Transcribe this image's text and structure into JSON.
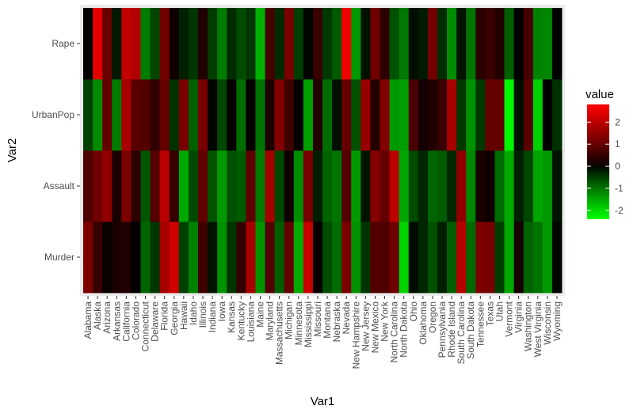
{
  "chart_data": {
    "type": "heatmap",
    "xlabel": "Var1",
    "ylabel": "Var2",
    "x_categories": [
      "Alabama",
      "Alaska",
      "Arizona",
      "Arkansas",
      "California",
      "Colorado",
      "Connecticut",
      "Delaware",
      "Florida",
      "Georgia",
      "Hawaii",
      "Idaho",
      "Illinois",
      "Indiana",
      "Iowa",
      "Kansas",
      "Kentucky",
      "Louisiana",
      "Maine",
      "Maryland",
      "Massachusetts",
      "Michigan",
      "Minnesota",
      "Mississippi",
      "Missouri",
      "Montana",
      "Nebraska",
      "Nevada",
      "New Hampshire",
      "New Jersey",
      "New Mexico",
      "New York",
      "North Carolina",
      "North Dakota",
      "Ohio",
      "Oklahoma",
      "Oregon",
      "Pennsylvania",
      "Rhode Island",
      "South Carolina",
      "South Dakota",
      "Tennessee",
      "Texas",
      "Utah",
      "Vermont",
      "Virginia",
      "Washington",
      "West Virginia",
      "Wisconsin",
      "Wyoming"
    ],
    "y_categories": [
      "Murder",
      "Assault",
      "UrbanPop",
      "Rape"
    ],
    "values": {
      "Murder": [
        1.24,
        0.51,
        0.07,
        0.23,
        0.28,
        0.03,
        -0.85,
        -0.43,
        1.75,
        2.21,
        -0.52,
        -1.13,
        0.59,
        -0.13,
        -1.28,
        -0.41,
        0.46,
        1.74,
        -1.3,
        0.81,
        -0.78,
        0.99,
        -1.54,
        2.16,
        0.07,
        -0.63,
        -0.91,
        1.23,
        -1.28,
        -0.41,
        0.82,
        0.76,
        1.11,
        -1.95,
        -0.08,
        -0.29,
        -0.66,
        -0.22,
        -0.8,
        1.91,
        -0.89,
        1.27,
        1.2,
        -0.5,
        -1.51,
        0.19,
        -0.84,
        -0.98,
        -1.36,
        -0.04
      ],
      "Assault": [
        0.78,
        1.11,
        1.48,
        0.23,
        1.26,
        0.4,
        -0.73,
        0.81,
        1.97,
        0.49,
        -1.52,
        -0.61,
        0.95,
        -0.7,
        -1.37,
        -0.68,
        -0.75,
        0.94,
        -1.06,
        1.73,
        -0.59,
        0.14,
        -1.23,
        1.22,
        -0.23,
        -0.84,
        -1.02,
        0.82,
        -1.37,
        -0.14,
        1.37,
        0.99,
        1.99,
        -1.5,
        -0.62,
        -0.3,
        -0.86,
        -0.75,
        -0.31,
        1.5,
        -1.17,
        0.22,
        0.11,
        -0.91,
        -1.52,
        -0.23,
        -0.56,
        -1.46,
        -1.37,
        -0.13
      ],
      "UrbanPop": [
        -0.52,
        -1.21,
        1.0,
        -1.07,
        1.76,
        0.86,
        0.79,
        0.45,
        1.0,
        -0.38,
        1.21,
        -0.8,
        1.21,
        -0.03,
        -0.59,
        0.03,
        -0.93,
        0.03,
        -1.0,
        0.27,
        1.34,
        0.59,
        0.03,
        -1.42,
        0.31,
        -0.93,
        -0.11,
        1.0,
        -0.66,
        1.55,
        0.31,
        1.34,
        -1.35,
        -1.42,
        0.72,
        0.17,
        0.31,
        0.52,
        1.76,
        -0.45,
        -1.28,
        -0.45,
        1.0,
        0.99,
        -2.3,
        -0.11,
        0.86,
        -1.9,
        0.03,
        -0.38
      ],
      "Rape": [
        -0.0,
        2.48,
        1.04,
        -0.18,
        2.07,
        1.86,
        -1.08,
        -0.56,
        1.13,
        0.14,
        -0.25,
        -0.41,
        0.28,
        -0.48,
        -1.09,
        -0.33,
        -0.62,
        -0.44,
        -1.59,
        0.68,
        -0.32,
        1.24,
        -0.5,
        -0.03,
        0.52,
        -0.45,
        -0.75,
        2.63,
        -1.35,
        -0.12,
        1.12,
        0.41,
        -0.67,
        -1.05,
        -0.1,
        -0.2,
        1.14,
        -0.34,
        -1.23,
        -0.14,
        -1.02,
        0.4,
        0.55,
        0.31,
        -0.79,
        -0.01,
        0.65,
        -1.14,
        -1.17,
        -0.02
      ]
    },
    "legend": {
      "title": "value",
      "ticks": [
        2,
        1,
        0,
        -1,
        -2
      ],
      "range": [
        -2.4,
        2.8
      ],
      "high_color": "#ff0000",
      "mid_color": "#000000",
      "low_color": "#00ff00",
      "placement": "right"
    },
    "panel_background": "#ebebeb"
  }
}
